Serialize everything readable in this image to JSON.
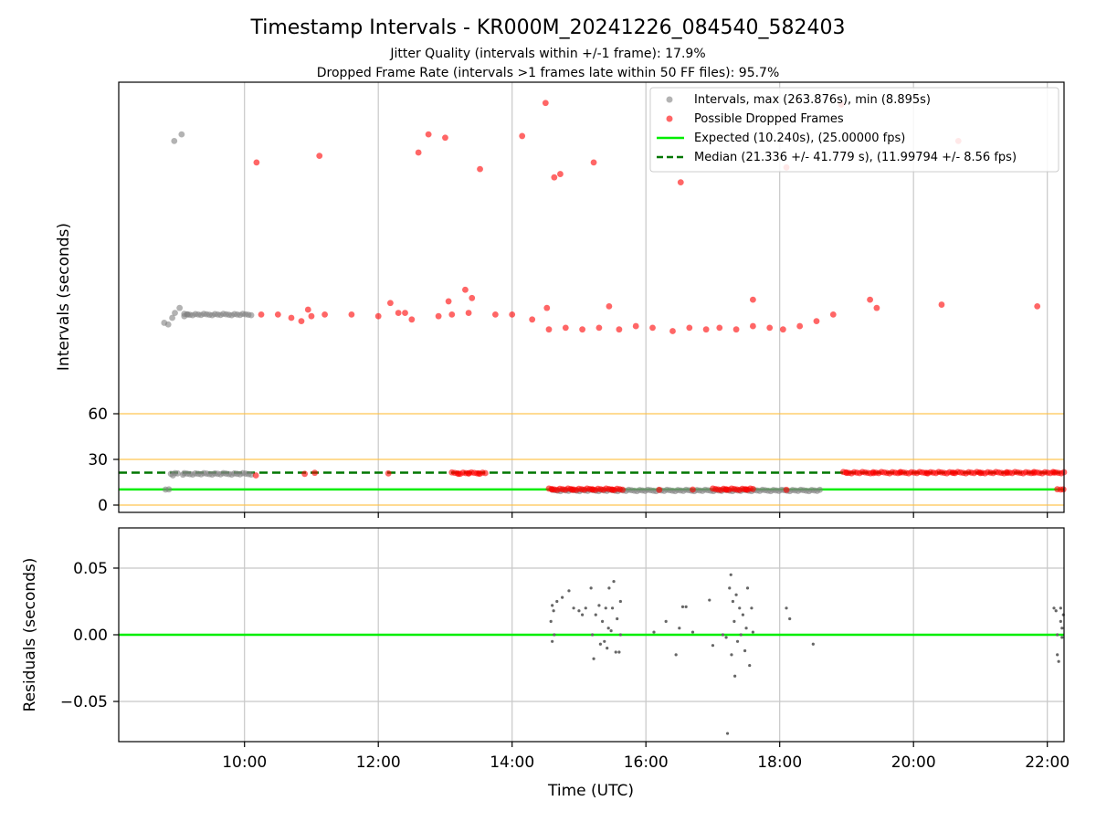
{
  "figure": {
    "title": "Timestamp Intervals - KR000M_20241226_084540_582403",
    "subtitle_1": "Jitter Quality (intervals within +/-1 frame): 17.9%",
    "subtitle_2": "Dropped Frame Rate (intervals >1 frames late within 50 FF files): 95.7%"
  },
  "colors": {
    "intervals": "#808080",
    "dropped": "#ff0000",
    "expected": "#00ee00",
    "median": "#007700",
    "threshold": "#ffc040",
    "grid": "#c8c8c8",
    "residuals": "#666666"
  },
  "chart_data": [
    {
      "type": "scatter",
      "xlabel": "",
      "ylabel": "Intervals (seconds)",
      "x_unit": "hours UTC",
      "xlim": [
        8.12,
        22.25
      ],
      "y_ticks": [
        0,
        30,
        60
      ],
      "threshold_lines_y": [
        0,
        30,
        60
      ],
      "legend_position": "top-right",
      "legend": [
        {
          "label": "Intervals, max (263.876s), min (8.895s)",
          "marker": "gray-dot"
        },
        {
          "label": "Possible Dropped Frames",
          "marker": "red-dot"
        },
        {
          "label": "Expected (10.240s), (25.00000 fps)",
          "line": "solid-green"
        },
        {
          "label": "Median (21.336 +/- 41.779 s), (11.99794 +/- 8.56 fps)",
          "line": "dashed-darkgreen"
        }
      ],
      "expected_y": 10.24,
      "median_y": 21.336,
      "note_y_axis": "upper region above 60 s is compressed (non-linear)",
      "series": [
        {
          "name": "Intervals",
          "points": [
            [
              8.82,
              10.2
            ],
            [
              8.87,
              10.3
            ],
            [
              8.9,
              20.5
            ],
            [
              8.93,
              19.5
            ],
            [
              8.96,
              21.0
            ],
            [
              9.0,
              20.8
            ],
            [
              9.08,
              20.0
            ],
            [
              8.8,
              115
            ],
            [
              8.86,
              114
            ],
            [
              8.92,
              118
            ],
            [
              8.96,
              121
            ],
            [
              9.03,
              124
            ],
            [
              9.1,
              119
            ],
            [
              9.15,
              120
            ],
            [
              8.95,
              225
            ],
            [
              9.06,
              229
            ]
          ]
        },
        {
          "name": "Possible Dropped Frames",
          "points": [
            [
              10.18,
              212
            ],
            [
              11.12,
              216
            ],
            [
              12.6,
              218
            ],
            [
              12.75,
              229
            ],
            [
              13.0,
              227
            ],
            [
              13.52,
              208
            ],
            [
              14.15,
              228
            ],
            [
              14.5,
              248
            ],
            [
              14.63,
              203
            ],
            [
              14.72,
              205
            ],
            [
              15.22,
              212
            ],
            [
              16.52,
              200
            ],
            [
              18.1,
              209
            ],
            [
              18.92,
              247
            ],
            [
              20.67,
              225
            ],
            [
              10.25,
              120
            ],
            [
              10.5,
              120
            ],
            [
              10.7,
              118
            ],
            [
              10.85,
              116
            ],
            [
              11.0,
              119
            ],
            [
              11.2,
              120
            ],
            [
              11.6,
              120
            ],
            [
              12.0,
              119
            ],
            [
              12.3,
              121
            ],
            [
              12.5,
              117
            ],
            [
              12.9,
              119
            ],
            [
              13.1,
              120
            ],
            [
              13.35,
              121
            ],
            [
              13.75,
              120
            ],
            [
              14.0,
              120
            ],
            [
              14.3,
              117
            ],
            [
              14.55,
              111
            ],
            [
              14.8,
              112
            ],
            [
              15.05,
              111
            ],
            [
              15.3,
              112
            ],
            [
              15.6,
              111
            ],
            [
              15.85,
              113
            ],
            [
              16.1,
              112
            ],
            [
              16.4,
              110
            ],
            [
              16.65,
              112
            ],
            [
              16.9,
              111
            ],
            [
              17.1,
              112
            ],
            [
              17.35,
              111
            ],
            [
              17.6,
              113
            ],
            [
              17.85,
              112
            ],
            [
              18.05,
              111
            ],
            [
              18.3,
              113
            ],
            [
              18.55,
              116
            ],
            [
              18.8,
              120
            ],
            [
              10.95,
              123
            ],
            [
              12.18,
              127
            ],
            [
              12.4,
              121
            ],
            [
              13.3,
              135
            ],
            [
              13.05,
              128
            ],
            [
              15.45,
              125
            ],
            [
              17.6,
              129
            ],
            [
              19.35,
              129
            ],
            [
              19.45,
              124
            ],
            [
              20.42,
              126
            ],
            [
              21.85,
              125
            ],
            [
              13.4,
              130
            ],
            [
              14.52,
              124
            ],
            [
              10.17,
              19.5
            ],
            [
              10.9,
              20.5
            ],
            [
              11.05,
              21.2
            ],
            [
              12.15,
              20.8
            ],
            [
              13.2,
              20.5
            ],
            [
              13.35,
              21.0
            ],
            [
              13.5,
              20.8
            ],
            [
              14.6,
              10.2
            ],
            [
              14.9,
              10.0
            ],
            [
              15.2,
              10.3
            ],
            [
              15.5,
              10.1
            ],
            [
              16.2,
              10.0
            ],
            [
              16.7,
              10.2
            ],
            [
              17.2,
              10.1
            ],
            [
              17.5,
              10.3
            ],
            [
              18.1,
              10.0
            ],
            [
              19.0,
              21.2
            ],
            [
              19.4,
              21.0
            ],
            [
              19.8,
              21.3
            ],
            [
              20.2,
              21.1
            ],
            [
              20.6,
              21.2
            ],
            [
              21.0,
              21.0
            ],
            [
              21.4,
              21.2
            ],
            [
              21.8,
              21.1
            ],
            [
              22.1,
              21.3
            ],
            [
              22.15,
              10.4
            ],
            [
              22.2,
              10.2
            ],
            [
              22.24,
              10.3
            ]
          ]
        }
      ],
      "segments": [
        {
          "name": "Intervals",
          "x_start": 9.1,
          "x_end": 10.1,
          "y": 20.5
        },
        {
          "name": "Intervals",
          "x_start": 9.1,
          "x_end": 10.1,
          "y": 120
        },
        {
          "name": "Intervals",
          "x_start": 14.6,
          "x_end": 18.6,
          "y": 9.6
        },
        {
          "name": "Possible Dropped Frames",
          "x_start": 14.55,
          "x_end": 15.65,
          "y": 10.4
        },
        {
          "name": "Possible Dropped Frames",
          "x_start": 17.0,
          "x_end": 17.6,
          "y": 10.4
        },
        {
          "name": "Possible Dropped Frames",
          "x_start": 18.95,
          "x_end": 22.25,
          "y": 21.3
        },
        {
          "name": "Possible Dropped Frames",
          "x_start": 13.1,
          "x_end": 13.6,
          "y": 21.0
        }
      ]
    },
    {
      "type": "scatter",
      "xlabel": "Time (UTC)",
      "ylabel": "Residuals (seconds)",
      "xlim": [
        8.12,
        22.25
      ],
      "ylim": [
        -0.08,
        0.08
      ],
      "x_ticks": [
        10,
        12,
        14,
        16,
        18,
        20,
        22
      ],
      "x_tick_labels": [
        "10:00",
        "12:00",
        "14:00",
        "16:00",
        "18:00",
        "20:00",
        "22:00"
      ],
      "y_ticks": [
        0.05,
        0.0,
        -0.05
      ],
      "y_tick_labels": [
        "0.05",
        "0.00",
        "−0.05"
      ],
      "grid": true,
      "zero_line": true,
      "series": [
        {
          "name": "Residuals",
          "points": [
            [
              14.6,
              0.022
            ],
            [
              14.62,
              0.018
            ],
            [
              14.58,
              0.01
            ],
            [
              14.6,
              -0.005
            ],
            [
              14.63,
              0.0
            ],
            [
              14.67,
              0.025
            ],
            [
              14.75,
              0.028
            ],
            [
              14.85,
              0.033
            ],
            [
              14.92,
              0.02
            ],
            [
              15.0,
              0.018
            ],
            [
              15.05,
              0.015
            ],
            [
              15.1,
              0.02
            ],
            [
              15.18,
              0.035
            ],
            [
              15.2,
              0.0
            ],
            [
              15.22,
              -0.018
            ],
            [
              15.25,
              0.015
            ],
            [
              15.3,
              0.022
            ],
            [
              15.35,
              0.01
            ],
            [
              15.38,
              -0.005
            ],
            [
              15.4,
              0.02
            ],
            [
              15.42,
              -0.01
            ],
            [
              15.45,
              0.035
            ],
            [
              15.48,
              0.003
            ],
            [
              15.5,
              0.02
            ],
            [
              15.52,
              0.04
            ],
            [
              15.55,
              -0.013
            ],
            [
              15.57,
              0.012
            ],
            [
              15.6,
              -0.013
            ],
            [
              15.62,
              0.025
            ],
            [
              15.62,
              0.0
            ],
            [
              15.32,
              -0.007
            ],
            [
              15.44,
              0.005
            ],
            [
              16.12,
              0.002
            ],
            [
              16.3,
              0.01
            ],
            [
              16.45,
              -0.015
            ],
            [
              16.5,
              0.005
            ],
            [
              16.55,
              0.021
            ],
            [
              16.6,
              0.021
            ],
            [
              16.7,
              0.002
            ],
            [
              16.95,
              0.026
            ],
            [
              17.0,
              -0.008
            ],
            [
              17.15,
              0.0
            ],
            [
              17.2,
              -0.002
            ],
            [
              17.25,
              0.035
            ],
            [
              17.27,
              0.045
            ],
            [
              17.28,
              -0.015
            ],
            [
              17.3,
              0.025
            ],
            [
              17.32,
              0.01
            ],
            [
              17.33,
              -0.031
            ],
            [
              17.35,
              0.03
            ],
            [
              17.37,
              -0.005
            ],
            [
              17.4,
              0.02
            ],
            [
              17.42,
              0.0
            ],
            [
              17.45,
              0.015
            ],
            [
              17.48,
              -0.012
            ],
            [
              17.5,
              0.005
            ],
            [
              17.52,
              0.035
            ],
            [
              17.55,
              -0.023
            ],
            [
              17.58,
              0.02
            ],
            [
              17.6,
              0.002
            ],
            [
              17.22,
              -0.074
            ],
            [
              18.1,
              0.02
            ],
            [
              18.15,
              0.012
            ],
            [
              18.5,
              -0.007
            ],
            [
              22.1,
              0.02
            ],
            [
              22.13,
              0.018
            ],
            [
              22.15,
              0.0
            ],
            [
              22.17,
              -0.02
            ],
            [
              22.2,
              0.02
            ],
            [
              22.22,
              0.005
            ],
            [
              22.15,
              -0.015
            ],
            [
              22.2,
              0.01
            ],
            [
              22.24,
              0.015
            ],
            [
              22.22,
              -0.002
            ]
          ]
        }
      ]
    }
  ]
}
